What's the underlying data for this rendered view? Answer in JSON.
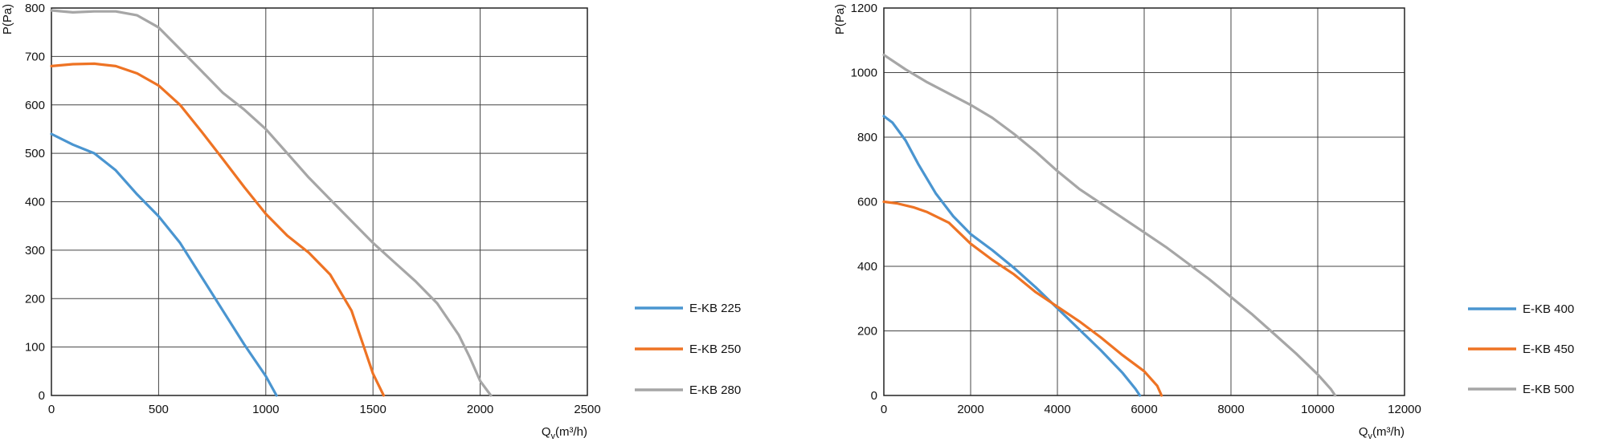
{
  "chart_data": [
    {
      "type": "line",
      "xlabel": "Q",
      "xlabel_sub": "v",
      "xlabel_unit": "(m³/h)",
      "ylabel": "P(Pa)",
      "xlim": [
        0,
        2500
      ],
      "ylim": [
        0,
        800
      ],
      "xticks": [
        "0",
        "500",
        "1000",
        "1500",
        "2000",
        "2500"
      ],
      "yticks": [
        "0",
        "100",
        "200",
        "300",
        "400",
        "500",
        "600",
        "700",
        "800"
      ],
      "grid": true,
      "legend_position": "right",
      "series": [
        {
          "name": "E-KB 225",
          "color": "#4a95d0",
          "points": [
            [
              0,
              540
            ],
            [
              100,
              518
            ],
            [
              200,
              500
            ],
            [
              300,
              465
            ],
            [
              400,
              415
            ],
            [
              500,
              370
            ],
            [
              600,
              315
            ],
            [
              700,
              245
            ],
            [
              800,
              175
            ],
            [
              900,
              105
            ],
            [
              1000,
              40
            ],
            [
              1050,
              0
            ]
          ]
        },
        {
          "name": "E-KB 250",
          "color": "#ee7324",
          "points": [
            [
              0,
              680
            ],
            [
              100,
              684
            ],
            [
              200,
              685
            ],
            [
              300,
              680
            ],
            [
              400,
              665
            ],
            [
              500,
              640
            ],
            [
              600,
              600
            ],
            [
              700,
              545
            ],
            [
              800,
              488
            ],
            [
              900,
              430
            ],
            [
              1000,
              375
            ],
            [
              1100,
              330
            ],
            [
              1200,
              295
            ],
            [
              1300,
              250
            ],
            [
              1400,
              175
            ],
            [
              1450,
              110
            ],
            [
              1500,
              45
            ],
            [
              1550,
              0
            ]
          ]
        },
        {
          "name": "E-KB 280",
          "color": "#a6a6a6",
          "points": [
            [
              0,
              795
            ],
            [
              100,
              791
            ],
            [
              200,
              793
            ],
            [
              300,
              793
            ],
            [
              400,
              785
            ],
            [
              500,
              760
            ],
            [
              600,
              715
            ],
            [
              700,
              670
            ],
            [
              800,
              625
            ],
            [
              900,
              590
            ],
            [
              1000,
              550
            ],
            [
              1100,
              500
            ],
            [
              1200,
              450
            ],
            [
              1300,
              405
            ],
            [
              1400,
              360
            ],
            [
              1500,
              315
            ],
            [
              1600,
              275
            ],
            [
              1700,
              235
            ],
            [
              1800,
              190
            ],
            [
              1900,
              125
            ],
            [
              1950,
              80
            ],
            [
              2000,
              30
            ],
            [
              2050,
              0
            ]
          ]
        }
      ]
    },
    {
      "type": "line",
      "xlabel": "Q",
      "xlabel_sub": "v",
      "xlabel_unit": "(m³/h)",
      "ylabel": "P(Pa)",
      "xlim": [
        0,
        12000
      ],
      "ylim": [
        0,
        1200
      ],
      "xticks": [
        "0",
        "2000",
        "4000",
        "6000",
        "8000",
        "10000",
        "12000"
      ],
      "yticks": [
        "0",
        "200",
        "400",
        "600",
        "800",
        "1000",
        "1200"
      ],
      "grid": true,
      "legend_position": "right",
      "series": [
        {
          "name": "E-KB 400",
          "color": "#4a95d0",
          "points": [
            [
              0,
              865
            ],
            [
              200,
              845
            ],
            [
              500,
              790
            ],
            [
              800,
              715
            ],
            [
              1200,
              625
            ],
            [
              1600,
              555
            ],
            [
              2000,
              500
            ],
            [
              2500,
              450
            ],
            [
              3000,
              395
            ],
            [
              3500,
              335
            ],
            [
              4000,
              270
            ],
            [
              4500,
              205
            ],
            [
              5000,
              140
            ],
            [
              5500,
              70
            ],
            [
              5800,
              20
            ],
            [
              5900,
              0
            ]
          ]
        },
        {
          "name": "E-KB 450",
          "color": "#ee7324",
          "points": [
            [
              0,
              600
            ],
            [
              300,
              595
            ],
            [
              700,
              582
            ],
            [
              1000,
              568
            ],
            [
              1500,
              535
            ],
            [
              2000,
              470
            ],
            [
              2500,
              420
            ],
            [
              3000,
              375
            ],
            [
              3500,
              320
            ],
            [
              4000,
              275
            ],
            [
              4500,
              230
            ],
            [
              5000,
              180
            ],
            [
              5500,
              125
            ],
            [
              6000,
              75
            ],
            [
              6300,
              30
            ],
            [
              6400,
              0
            ]
          ]
        },
        {
          "name": "E-KB 500",
          "color": "#a6a6a6",
          "points": [
            [
              0,
              1055
            ],
            [
              500,
              1010
            ],
            [
              1000,
              970
            ],
            [
              1500,
              935
            ],
            [
              2000,
              900
            ],
            [
              2500,
              860
            ],
            [
              3000,
              810
            ],
            [
              3500,
              755
            ],
            [
              4000,
              695
            ],
            [
              4500,
              640
            ],
            [
              5000,
              595
            ],
            [
              5500,
              550
            ],
            [
              6000,
              505
            ],
            [
              6500,
              460
            ],
            [
              7000,
              410
            ],
            [
              7500,
              360
            ],
            [
              8000,
              305
            ],
            [
              8500,
              250
            ],
            [
              9000,
              190
            ],
            [
              9500,
              130
            ],
            [
              10000,
              65
            ],
            [
              10300,
              20
            ],
            [
              10400,
              0
            ]
          ]
        }
      ]
    }
  ]
}
